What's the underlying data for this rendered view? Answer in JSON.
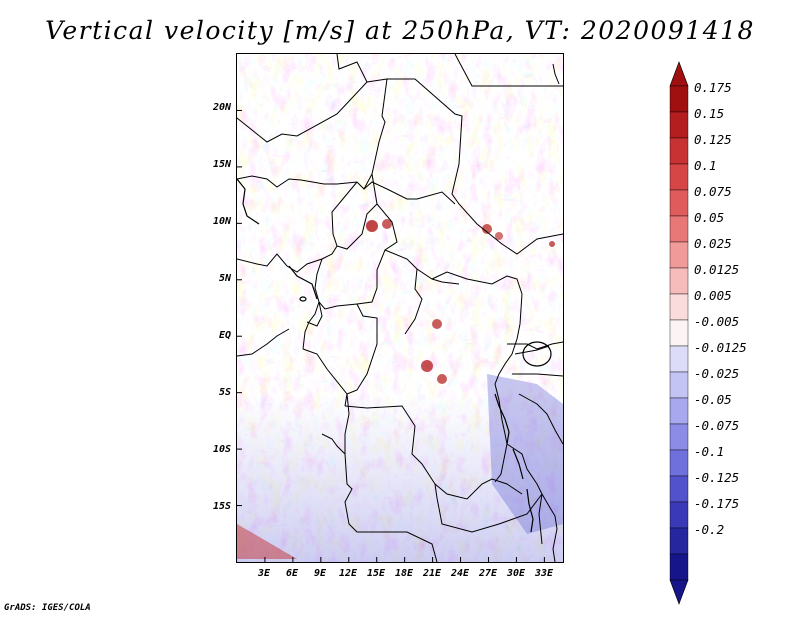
{
  "title": "Vertical velocity [m/s] at 250hPa, VT: 2020091418",
  "credit": "GrADS: IGES/COLA",
  "map": {
    "variable": "Vertical velocity",
    "units": "m/s",
    "level": "250hPa",
    "valid_time": "2020091418",
    "lon_range": [
      0,
      35
    ],
    "lat_range": [
      -20,
      25
    ],
    "y_tick_labels": [
      {
        "value": 20,
        "label": "20N"
      },
      {
        "value": 15,
        "label": "15N"
      },
      {
        "value": 10,
        "label": "10N"
      },
      {
        "value": 5,
        "label": "5N"
      },
      {
        "value": 0,
        "label": "EQ"
      },
      {
        "value": -5,
        "label": "5S"
      },
      {
        "value": -10,
        "label": "10S"
      },
      {
        "value": -15,
        "label": "15S"
      }
    ],
    "x_tick_labels": [
      {
        "value": 3,
        "label": "3E"
      },
      {
        "value": 6,
        "label": "6E"
      },
      {
        "value": 9,
        "label": "9E"
      },
      {
        "value": 12,
        "label": "12E"
      },
      {
        "value": 15,
        "label": "15E"
      },
      {
        "value": 18,
        "label": "18E"
      },
      {
        "value": 21,
        "label": "21E"
      },
      {
        "value": 24,
        "label": "24E"
      },
      {
        "value": 27,
        "label": "27E"
      },
      {
        "value": 30,
        "label": "30E"
      },
      {
        "value": 33,
        "label": "33E"
      }
    ]
  },
  "colorbar": {
    "labels": [
      "0.175",
      "0.15",
      "0.125",
      "0.1",
      "0.075",
      "0.05",
      "0.025",
      "0.0125",
      "0.005",
      "-0.005",
      "-0.0125",
      "-0.025",
      "-0.05",
      "-0.075",
      "-0.1",
      "-0.125",
      "-0.175",
      "-0.2"
    ],
    "colors": [
      "#a01010",
      "#b51e1e",
      "#c83232",
      "#d64646",
      "#e05c5c",
      "#e87878",
      "#f09a9a",
      "#f6bcbc",
      "#fadcdc",
      "#fcf4f4",
      "#dcdcf8",
      "#c4c4f4",
      "#a8a8ee",
      "#8c8ce6",
      "#7070dc",
      "#5252cc",
      "#3a3ab8",
      "#26269e",
      "#16168a"
    ],
    "high_end_color": "#a01010",
    "low_end_color": "#16168a"
  }
}
